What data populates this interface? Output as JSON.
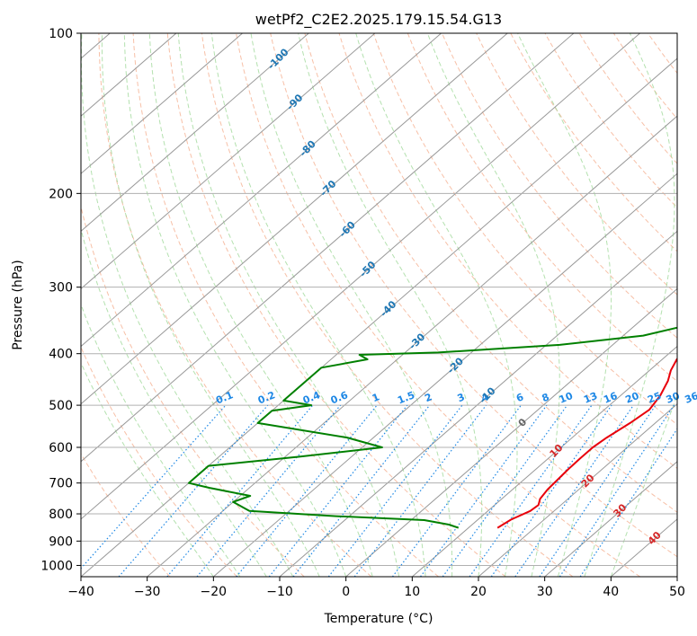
{
  "chart_data": {
    "type": "line",
    "subtype": "skew-T log-P diagram",
    "title": "wetPf2_C2E2.2025.179.15.54.G13",
    "xlabel": "Temperature (°C)",
    "ylabel": "Pressure (hPa)",
    "xlim": [
      -40,
      50
    ],
    "ylim": [
      1050,
      100
    ],
    "y_scale": "log",
    "x_ticks": [
      -40,
      -30,
      -20,
      -10,
      0,
      10,
      20,
      30,
      40,
      50
    ],
    "y_ticks": [
      100,
      200,
      300,
      400,
      500,
      600,
      700,
      800,
      900,
      1000
    ],
    "grid": true,
    "colors": {
      "temperature": "#e8000b",
      "dewpoint": "#008000",
      "isotherm": "#999999",
      "dry_adiabat": "#f4a582",
      "moist_adiabat": "#a1d99b",
      "mixing_ratio": "#1e88e5",
      "isotherm_label_blue": "#1f77b4",
      "isotherm_label_red": "#d62728",
      "isotherm_label_gray": "#666666"
    },
    "mixing_ratio_labels": [
      "0.1",
      "0.2",
      "0.4",
      "0.6",
      "1",
      "1.5",
      "2",
      "3",
      "4",
      "6",
      "8",
      "10",
      "13",
      "16",
      "20",
      "25",
      "30",
      "36"
    ],
    "mixing_ratio_values": [
      0.1,
      0.2,
      0.4,
      0.6,
      1,
      1.5,
      2,
      3,
      4,
      6,
      8,
      10,
      13,
      16,
      20,
      25,
      30,
      36
    ],
    "isotherm_labels": [
      {
        "label": "-100",
        "value": -100,
        "pressure": 112
      },
      {
        "label": "-90",
        "value": -90,
        "pressure": 135
      },
      {
        "label": "-80",
        "value": -80,
        "pressure": 165
      },
      {
        "label": "-70",
        "value": -70,
        "pressure": 196
      },
      {
        "label": "-60",
        "value": -60,
        "pressure": 234
      },
      {
        "label": "-50",
        "value": -50,
        "pressure": 278
      },
      {
        "label": "-40",
        "value": -40,
        "pressure": 330
      },
      {
        "label": "-30",
        "value": -30,
        "pressure": 380
      },
      {
        "label": "-20",
        "value": -20,
        "pressure": 422
      },
      {
        "label": "-10",
        "value": -10,
        "pressure": 480
      },
      {
        "label": "0",
        "value": 0,
        "pressure": 540
      },
      {
        "label": "10",
        "value": 10,
        "pressure": 610
      },
      {
        "label": "20",
        "value": 20,
        "pressure": 695
      },
      {
        "label": "30",
        "value": 30,
        "pressure": 790
      },
      {
        "label": "40",
        "value": 40,
        "pressure": 890
      }
    ],
    "series": [
      {
        "name": "",
        "role": "temperature",
        "points": [
          [
            14.4,
            850
          ],
          [
            15.0,
            820
          ],
          [
            16.4,
            790
          ],
          [
            16.6,
            770
          ],
          [
            15.8,
            750
          ],
          [
            15.3,
            720
          ],
          [
            15.1,
            690
          ],
          [
            14.9,
            660
          ],
          [
            14.8,
            630
          ],
          [
            14.8,
            600
          ],
          [
            15.2,
            575
          ],
          [
            16.2,
            540
          ],
          [
            16.8,
            510
          ],
          [
            16.0,
            480
          ],
          [
            14.6,
            450
          ],
          [
            13.2,
            430
          ],
          [
            12.2,
            410
          ],
          [
            12.0,
            395
          ],
          [
            12.3,
            380
          ],
          [
            11.8,
            365
          ],
          [
            10.6,
            350
          ],
          [
            9.3,
            335
          ],
          [
            8.7,
            318
          ],
          [
            8.6,
            305
          ],
          [
            8.0,
            285
          ],
          [
            6.7,
            262
          ],
          [
            4.5,
            240
          ],
          [
            2.5,
            222
          ],
          [
            1.3,
            208
          ],
          [
            1.1,
            195
          ],
          [
            2.0,
            180
          ],
          [
            3.5,
            165
          ],
          [
            4.2,
            150
          ],
          [
            5.5,
            137
          ],
          [
            7.3,
            124
          ],
          [
            10.1,
            112
          ],
          [
            12.5,
            100
          ]
        ]
      },
      {
        "name": "",
        "role": "dewpoint",
        "points": [
          [
            8.5,
            850
          ],
          [
            6.5,
            838
          ],
          [
            2.0,
            822
          ],
          [
            -12.0,
            808
          ],
          [
            -26.0,
            790
          ],
          [
            -30.0,
            760
          ],
          [
            -28.5,
            740
          ],
          [
            -36.0,
            715
          ],
          [
            -40.0,
            700
          ],
          [
            -40.0,
            650
          ],
          [
            -28.0,
            625
          ],
          [
            -17.0,
            600
          ],
          [
            -24.0,
            575
          ],
          [
            -40.0,
            540
          ],
          [
            -40.0,
            512
          ],
          [
            -35.0,
            500
          ],
          [
            -40.0,
            490
          ],
          [
            -40.0,
            425
          ],
          [
            -34.5,
            410
          ],
          [
            -36.5,
            402
          ],
          [
            -25.0,
            398
          ],
          [
            -8.0,
            385
          ],
          [
            3.0,
            370
          ],
          [
            7.5,
            355
          ],
          [
            8.8,
            340
          ],
          [
            8.4,
            330
          ],
          [
            6.0,
            322
          ],
          [
            3.5,
            310
          ],
          [
            2.6,
            295
          ],
          [
            2.6,
            283
          ],
          [
            1.6,
            268
          ],
          [
            0.6,
            248
          ],
          [
            -0.8,
            228
          ],
          [
            -3.5,
            212
          ],
          [
            -8.5,
            202
          ],
          [
            -13.0,
            192
          ],
          [
            -14.5,
            185
          ],
          [
            -13.0,
            175
          ],
          [
            -8.0,
            162
          ],
          [
            -3.5,
            148
          ],
          [
            -0.5,
            137
          ],
          [
            -0.2,
            123
          ],
          [
            0.0,
            112
          ],
          [
            1.0,
            104
          ],
          [
            1.5,
            100
          ]
        ]
      }
    ]
  }
}
